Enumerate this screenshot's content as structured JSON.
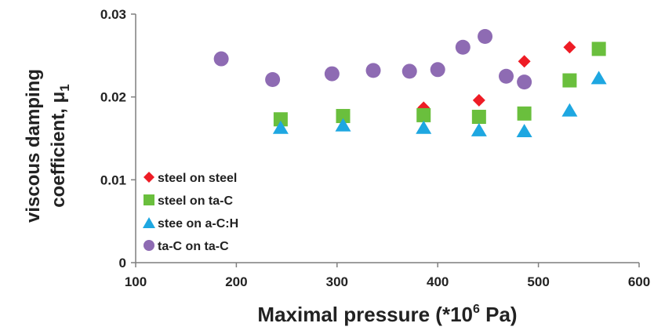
{
  "chart_data": {
    "type": "scatter",
    "title": "",
    "xlabel": {
      "prefix": "Maximal pressure (*10",
      "superscript": "6",
      "suffix": " Pa)"
    },
    "ylabel": {
      "line1": "viscous damping",
      "line2": "coefficient, μ",
      "subscript": "1"
    },
    "xlim": [
      100,
      600
    ],
    "ylim": [
      0,
      0.03
    ],
    "xticks": [
      100,
      200,
      300,
      400,
      500,
      600
    ],
    "yticks": [
      0,
      0.01,
      0.02,
      0.03
    ],
    "ytick_labels": [
      "0",
      "0.01",
      "0.02",
      "0.03"
    ],
    "grid": false,
    "legend_position": "bottom-left",
    "series": [
      {
        "name": "steel on steel",
        "marker": "diamond",
        "color": "#ee1c25",
        "points": [
          [
            306,
            0.0178
          ],
          [
            386,
            0.0187
          ],
          [
            441,
            0.0196
          ],
          [
            486,
            0.0243
          ],
          [
            531,
            0.026
          ]
        ]
      },
      {
        "name": "steel on ta-C",
        "marker": "square",
        "color": "#6abf3d",
        "points": [
          [
            244,
            0.0173
          ],
          [
            306,
            0.0177
          ],
          [
            386,
            0.0178
          ],
          [
            441,
            0.0176
          ],
          [
            486,
            0.018
          ],
          [
            531,
            0.022
          ],
          [
            560,
            0.0258
          ]
        ]
      },
      {
        "name": "stee on a-C:H",
        "marker": "triangle",
        "color": "#1ea7e1",
        "points": [
          [
            244,
            0.0163
          ],
          [
            306,
            0.0166
          ],
          [
            386,
            0.0163
          ],
          [
            441,
            0.016
          ],
          [
            486,
            0.0159
          ],
          [
            531,
            0.0184
          ],
          [
            560,
            0.0223
          ]
        ]
      },
      {
        "name": "ta-C on ta-C",
        "marker": "circle",
        "color": "#8e6bb3",
        "points": [
          [
            185,
            0.0246
          ],
          [
            236,
            0.0221
          ],
          [
            295,
            0.0228
          ],
          [
            336,
            0.0232
          ],
          [
            372,
            0.0231
          ],
          [
            400,
            0.0233
          ],
          [
            425,
            0.026
          ],
          [
            447,
            0.0273
          ],
          [
            468,
            0.0225
          ],
          [
            486,
            0.0218
          ]
        ]
      }
    ]
  }
}
